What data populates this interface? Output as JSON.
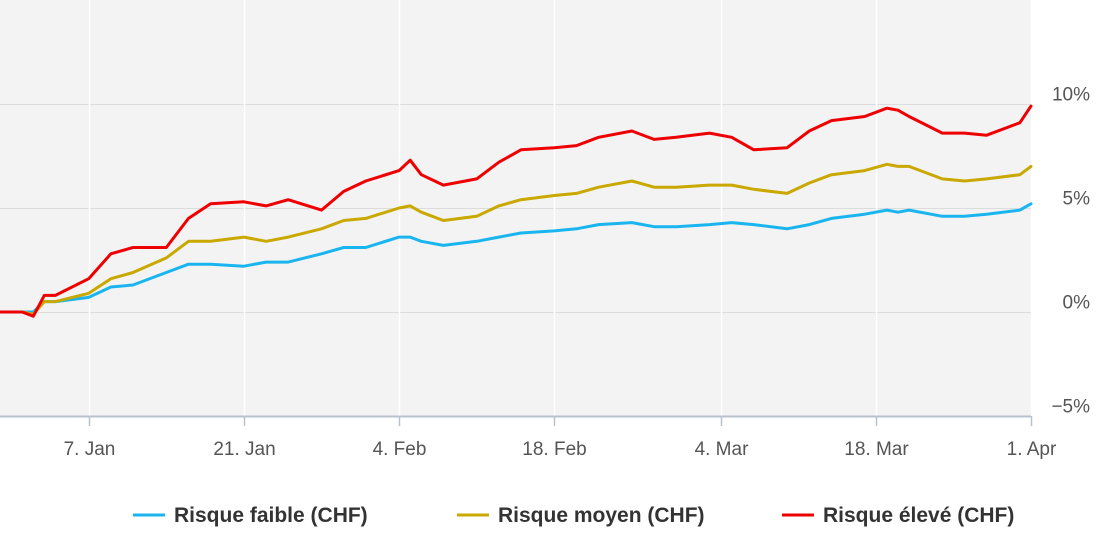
{
  "chart_data": {
    "type": "line",
    "x_domain": [
      "2019-12-30",
      "2020-04-01"
    ],
    "ylim": [
      -5,
      15
    ],
    "grid": true,
    "legend_position": "bottom-center",
    "x_ticks": [
      {
        "date": "2020-01-07",
        "label": "7. Jan"
      },
      {
        "date": "2020-01-21",
        "label": "21. Jan"
      },
      {
        "date": "2020-02-04",
        "label": "4. Feb"
      },
      {
        "date": "2020-02-18",
        "label": "18. Feb"
      },
      {
        "date": "2020-03-04",
        "label": "4. Mar"
      },
      {
        "date": "2020-03-18",
        "label": "18. Mar"
      },
      {
        "date": "2020-04-01",
        "label": "1. Apr"
      }
    ],
    "y_ticks": [
      {
        "value": 10,
        "label": "10%"
      },
      {
        "value": 5,
        "label": "5%"
      },
      {
        "value": 0,
        "label": "0%"
      },
      {
        "value": -5,
        "label": "−5%"
      }
    ],
    "x": [
      "2019-12-30",
      "2020-01-01",
      "2020-01-02",
      "2020-01-03",
      "2020-01-04",
      "2020-01-07",
      "2020-01-09",
      "2020-01-11",
      "2020-01-14",
      "2020-01-16",
      "2020-01-18",
      "2020-01-21",
      "2020-01-23",
      "2020-01-25",
      "2020-01-28",
      "2020-01-30",
      "2020-02-01",
      "2020-02-04",
      "2020-02-05",
      "2020-02-06",
      "2020-02-08",
      "2020-02-11",
      "2020-02-13",
      "2020-02-15",
      "2020-02-18",
      "2020-02-20",
      "2020-02-22",
      "2020-02-25",
      "2020-02-27",
      "2020-02-29",
      "2020-03-03",
      "2020-03-05",
      "2020-03-07",
      "2020-03-10",
      "2020-03-12",
      "2020-03-14",
      "2020-03-17",
      "2020-03-19",
      "2020-03-20",
      "2020-03-21",
      "2020-03-24",
      "2020-03-26",
      "2020-03-28",
      "2020-03-31",
      "2020-04-01"
    ],
    "series": [
      {
        "name": "Risque faible (CHF)",
        "color": "#1ab5ef",
        "values": [
          0,
          0,
          0,
          0.5,
          0.5,
          0.7,
          1.2,
          1.3,
          1.9,
          2.3,
          2.3,
          2.2,
          2.4,
          2.4,
          2.8,
          3.1,
          3.1,
          3.6,
          3.6,
          3.4,
          3.2,
          3.4,
          3.6,
          3.8,
          3.9,
          4.0,
          4.2,
          4.3,
          4.1,
          4.1,
          4.2,
          4.3,
          4.2,
          4.0,
          4.2,
          4.5,
          4.7,
          4.9,
          4.8,
          4.9,
          4.6,
          4.6,
          4.7,
          4.9,
          5.2
        ]
      },
      {
        "name": "Risque moyen (CHF)",
        "color": "#c9a800",
        "values": [
          0,
          0,
          -0.1,
          0.5,
          0.5,
          0.9,
          1.6,
          1.9,
          2.6,
          3.4,
          3.4,
          3.6,
          3.4,
          3.6,
          4.0,
          4.4,
          4.5,
          5.0,
          5.1,
          4.8,
          4.4,
          4.6,
          5.1,
          5.4,
          5.6,
          5.7,
          6.0,
          6.3,
          6.0,
          6.0,
          6.1,
          6.1,
          5.9,
          5.7,
          6.2,
          6.6,
          6.8,
          7.1,
          7.0,
          7.0,
          6.4,
          6.3,
          6.4,
          6.6,
          7.0
        ]
      },
      {
        "name": "Risque élevé (CHF)",
        "color": "#ee0000",
        "values": [
          0,
          0,
          -0.2,
          0.8,
          0.8,
          1.6,
          2.8,
          3.1,
          3.1,
          4.5,
          5.2,
          5.3,
          5.1,
          5.4,
          4.9,
          5.8,
          6.3,
          6.8,
          7.3,
          6.6,
          6.1,
          6.4,
          7.2,
          7.8,
          7.9,
          8.0,
          8.4,
          8.7,
          8.3,
          8.4,
          8.6,
          8.4,
          7.8,
          7.9,
          8.7,
          9.2,
          9.4,
          9.8,
          9.7,
          9.4,
          8.6,
          8.6,
          8.5,
          9.1,
          9.9
        ]
      }
    ]
  }
}
